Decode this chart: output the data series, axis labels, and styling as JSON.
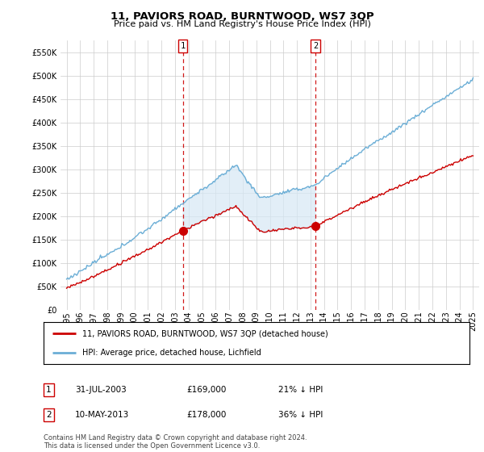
{
  "title": "11, PAVIORS ROAD, BURNTWOOD, WS7 3QP",
  "subtitle": "Price paid vs. HM Land Registry's House Price Index (HPI)",
  "hpi_label": "HPI: Average price, detached house, Lichfield",
  "price_label": "11, PAVIORS ROAD, BURNTWOOD, WS7 3QP (detached house)",
  "footer": "Contains HM Land Registry data © Crown copyright and database right 2024.\nThis data is licensed under the Open Government Licence v3.0.",
  "annotation1": {
    "num": "1",
    "date": "31-JUL-2003",
    "price": "£169,000",
    "rel": "21% ↓ HPI"
  },
  "annotation2": {
    "num": "2",
    "date": "10-MAY-2013",
    "price": "£178,000",
    "rel": "36% ↓ HPI"
  },
  "sale1_year": 2003.58,
  "sale1_price": 169000,
  "sale2_year": 2013.37,
  "sale2_price": 178000,
  "hpi_color": "#6baed6",
  "hpi_fill_color": "#d6e8f5",
  "price_color": "#cc0000",
  "vline_color": "#cc0000",
  "background_color": "#ffffff",
  "grid_color": "#cccccc",
  "ylim": [
    0,
    575000
  ],
  "yticks": [
    0,
    50000,
    100000,
    150000,
    200000,
    250000,
    300000,
    350000,
    400000,
    450000,
    500000,
    550000
  ],
  "x_start_year": 1995,
  "x_end_year": 2025,
  "title_fontsize": 9.5,
  "subtitle_fontsize": 8,
  "tick_fontsize": 7,
  "legend_fontsize": 7.5
}
